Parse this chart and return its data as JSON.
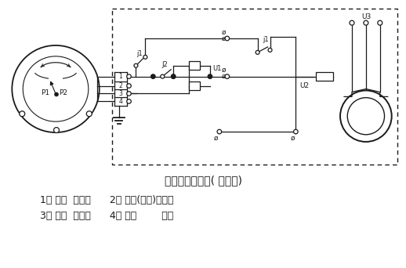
{
  "title": "电气线路示意图( 供参考)",
  "legend_line1": "1－ 黄色  公用线      2－ 绿色(蓝色)接通线",
  "legend_line2": "3－ 红色  断开线      4－ 黑色        地线",
  "bg_color": "#ffffff",
  "lc": "#1a1a1a",
  "title_fontsize": 10,
  "legend_fontsize": 9
}
